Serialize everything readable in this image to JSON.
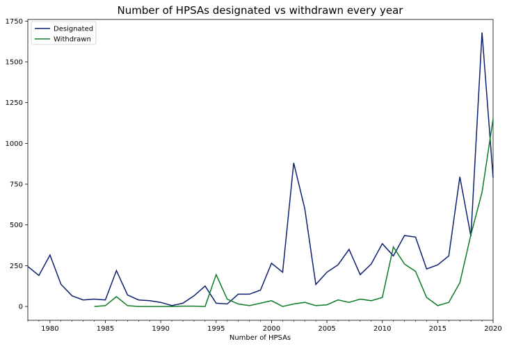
{
  "chart_data": {
    "type": "line",
    "title": "Number of HPSAs designated vs withdrawn every year",
    "xlabel": "Number of HPSAs",
    "ylabel": "",
    "xlim": [
      1978,
      2020
    ],
    "ylim": [
      -85,
      1760
    ],
    "xticks": [
      1980,
      1985,
      1990,
      1995,
      2000,
      2005,
      2010,
      2015,
      2020
    ],
    "yticks": [
      0,
      250,
      500,
      750,
      1000,
      1250,
      1500,
      1750
    ],
    "grid": false,
    "legend_position": "top-left",
    "series": [
      {
        "name": "Designated",
        "color": "#0c1f6e",
        "x": [
          1978,
          1979,
          1980,
          1981,
          1982,
          1983,
          1984,
          1985,
          1986,
          1987,
          1988,
          1989,
          1990,
          1991,
          1992,
          1993,
          1994,
          1995,
          1996,
          1997,
          1998,
          1999,
          2000,
          2001,
          2002,
          2003,
          2004,
          2005,
          2006,
          2007,
          2008,
          2009,
          2010,
          2011,
          2012,
          2013,
          2014,
          2015,
          2016,
          2017,
          2018,
          2019,
          2020
        ],
        "values": [
          245,
          190,
          315,
          135,
          65,
          40,
          45,
          40,
          220,
          70,
          40,
          35,
          25,
          5,
          20,
          65,
          125,
          20,
          15,
          75,
          75,
          100,
          265,
          210,
          880,
          600,
          135,
          210,
          255,
          350,
          195,
          260,
          385,
          310,
          435,
          425,
          230,
          255,
          310,
          795,
          430,
          1680,
          790
        ]
      },
      {
        "name": "Withdrawn",
        "color": "#0b7a26",
        "x": [
          1984,
          1985,
          1986,
          1987,
          1988,
          1989,
          1990,
          1991,
          1992,
          1993,
          1994,
          1995,
          1996,
          1997,
          1998,
          1999,
          2000,
          2001,
          2002,
          2003,
          2004,
          2005,
          2006,
          2007,
          2008,
          2009,
          2010,
          2011,
          2012,
          2013,
          2014,
          2015,
          2016,
          2017,
          2018,
          2019,
          2020
        ],
        "values": [
          0,
          5,
          60,
          5,
          0,
          0,
          0,
          0,
          2,
          2,
          0,
          195,
          45,
          15,
          5,
          20,
          35,
          0,
          15,
          25,
          5,
          10,
          40,
          25,
          45,
          35,
          55,
          365,
          260,
          215,
          55,
          5,
          25,
          145,
          440,
          700,
          1150
        ]
      }
    ]
  }
}
